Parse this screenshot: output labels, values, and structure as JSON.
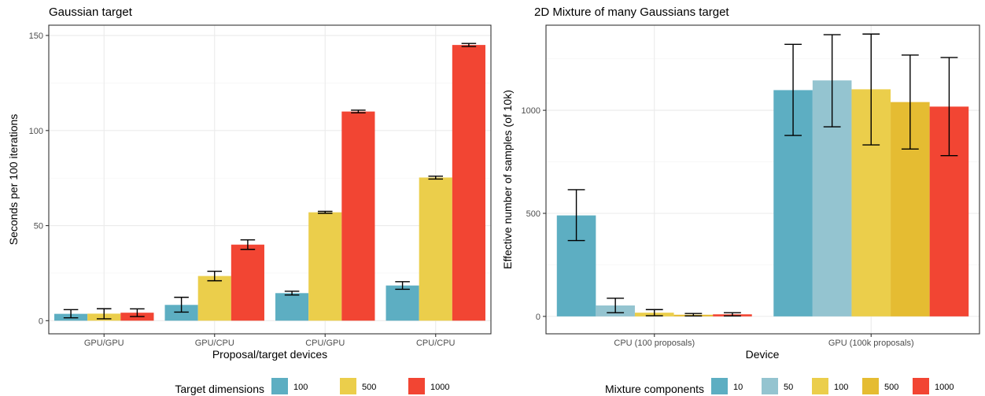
{
  "chart_data": [
    {
      "type": "bar",
      "title": "Gaussian target",
      "xlabel": "Proposal/target devices",
      "ylabel": "Seconds per 100 iterations",
      "categories": [
        "GPU/GPU",
        "GPU/CPU",
        "CPU/GPU",
        "CPU/CPU"
      ],
      "ylim": [
        0,
        150
      ],
      "yticks": [
        0,
        50,
        100,
        150
      ],
      "grid": true,
      "legend": {
        "title": "Target dimensions",
        "position": "bottom"
      },
      "series": [
        {
          "name": "100",
          "color": "#5DAEC2",
          "values": [
            3.6,
            8.3,
            14.5,
            18.5
          ],
          "err_low": [
            1.5,
            4.5,
            13.5,
            16.5
          ],
          "err_high": [
            5.8,
            12.3,
            15.5,
            20.5
          ]
        },
        {
          "name": "500",
          "color": "#EBCE4B",
          "values": [
            3.7,
            23.5,
            57.0,
            75.3
          ],
          "err_low": [
            1.0,
            21.0,
            56.5,
            74.5
          ],
          "err_high": [
            6.3,
            26.0,
            57.5,
            76.0
          ]
        },
        {
          "name": "1000",
          "color": "#F24533",
          "values": [
            4.2,
            40.0,
            110.0,
            145.0
          ],
          "err_low": [
            2.2,
            37.5,
            109.3,
            144.2
          ],
          "err_high": [
            6.2,
            42.5,
            110.7,
            145.8
          ]
        }
      ]
    },
    {
      "type": "bar",
      "title": "2D Mixture of many Gaussians target",
      "xlabel": "Device",
      "ylabel": "Effective number of samples (of 10k)",
      "categories": [
        "CPU (100 proposals)",
        "GPU (100k proposals)"
      ],
      "ylim": [
        0,
        1400
      ],
      "yticks": [
        0,
        500,
        1000
      ],
      "grid": true,
      "legend": {
        "title": "Mixture components",
        "position": "bottom"
      },
      "series": [
        {
          "name": "10",
          "color": "#5DAEC2",
          "values": [
            490,
            1098
          ],
          "err_low": [
            368,
            878
          ],
          "err_high": [
            615,
            1320
          ]
        },
        {
          "name": "50",
          "color": "#94C4D0",
          "values": [
            53,
            1145
          ],
          "err_low": [
            18,
            920
          ],
          "err_high": [
            88,
            1367
          ]
        },
        {
          "name": "100",
          "color": "#EBCE4B",
          "values": [
            18,
            1102
          ],
          "err_low": [
            3,
            832
          ],
          "err_high": [
            33,
            1370
          ]
        },
        {
          "name": "500",
          "color": "#E5BC32",
          "values": [
            8,
            1040
          ],
          "err_low": [
            2,
            812
          ],
          "err_high": [
            14,
            1268
          ]
        },
        {
          "name": "1000",
          "color": "#F24533",
          "values": [
            10,
            1018
          ],
          "err_low": [
            2,
            780
          ],
          "err_high": [
            18,
            1256
          ]
        }
      ]
    }
  ]
}
